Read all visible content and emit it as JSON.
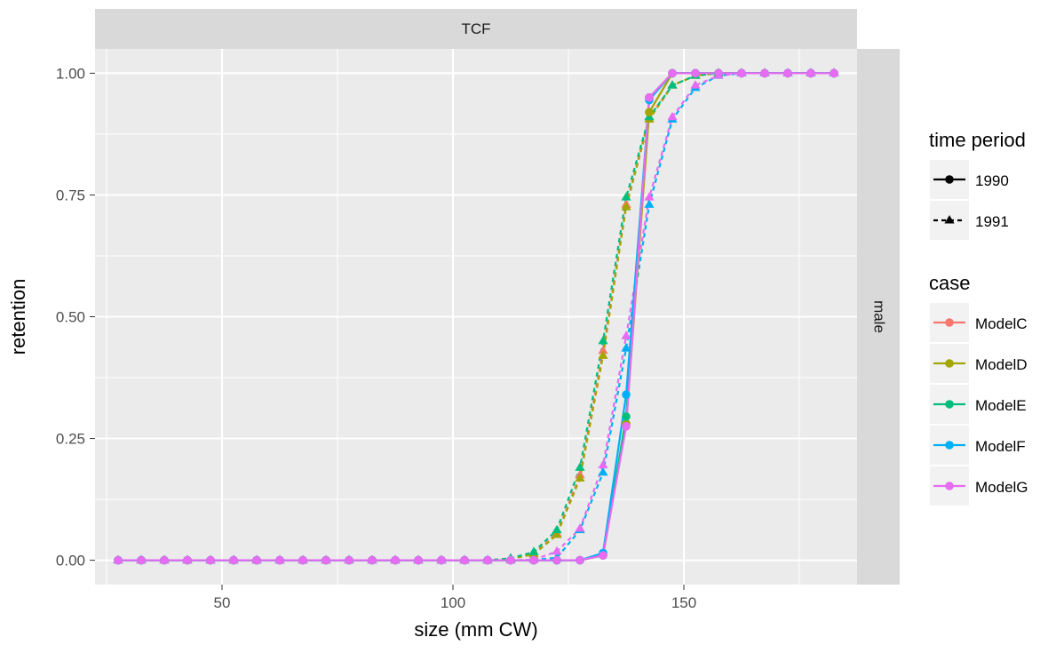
{
  "chart_data": {
    "type": "line",
    "facet_top": "TCF",
    "facet_right": "male",
    "xlabel": "size (mm CW)",
    "ylabel": "retention",
    "xlim": [
      22.5,
      187.5
    ],
    "ylim": [
      -0.05,
      1.05
    ],
    "x_ticks": [
      50,
      100,
      150
    ],
    "x_tick_labels": [
      "50",
      "100",
      "150"
    ],
    "y_ticks": [
      0,
      0.25,
      0.5,
      0.75,
      1
    ],
    "y_tick_labels": [
      "0.00",
      "0.25",
      "0.50",
      "0.75",
      "1.00"
    ],
    "grid": true,
    "legend_position": "right",
    "x": [
      27.5,
      32.5,
      37.5,
      42.5,
      47.5,
      52.5,
      57.5,
      62.5,
      67.5,
      72.5,
      77.5,
      82.5,
      87.5,
      92.5,
      97.5,
      102.5,
      107.5,
      112.5,
      117.5,
      122.5,
      127.5,
      132.5,
      137.5,
      142.5,
      147.5,
      152.5,
      157.5,
      162.5,
      167.5,
      172.5,
      177.5,
      182.5
    ],
    "legends": {
      "time_period": {
        "title": "time period",
        "entries": [
          {
            "label": "1990",
            "linetype": "solid",
            "shape": "circle"
          },
          {
            "label": "1991",
            "linetype": "dashed",
            "shape": "triangle"
          }
        ]
      },
      "case": {
        "title": "case",
        "entries": [
          {
            "label": "ModelC",
            "color": "#F8766D"
          },
          {
            "label": "ModelD",
            "color": "#A3A500"
          },
          {
            "label": "ModelE",
            "color": "#00BF7D"
          },
          {
            "label": "ModelF",
            "color": "#00B0F6"
          },
          {
            "label": "ModelG",
            "color": "#E76BF3"
          }
        ]
      }
    },
    "series": [
      {
        "case": "ModelC",
        "period": "1990",
        "values": [
          0,
          0,
          0,
          0,
          0,
          0,
          0,
          0,
          0,
          0,
          0,
          0,
          0,
          0,
          0,
          0,
          0,
          0,
          0,
          0,
          0,
          0.01,
          0.28,
          0.95,
          1,
          1,
          1,
          1,
          1,
          1,
          1,
          1
        ]
      },
      {
        "case": "ModelD",
        "period": "1990",
        "values": [
          0,
          0,
          0,
          0,
          0,
          0,
          0,
          0,
          0,
          0,
          0,
          0,
          0,
          0,
          0,
          0,
          0,
          0,
          0,
          0,
          0,
          0.01,
          0.28,
          0.92,
          1,
          1,
          1,
          1,
          1,
          1,
          1,
          1
        ]
      },
      {
        "case": "ModelE",
        "period": "1990",
        "values": [
          0,
          0,
          0,
          0,
          0,
          0,
          0,
          0,
          0,
          0,
          0,
          0,
          0,
          0,
          0,
          0,
          0,
          0,
          0,
          0,
          0,
          0.01,
          0.295,
          0.95,
          1,
          1,
          1,
          1,
          1,
          1,
          1,
          1
        ]
      },
      {
        "case": "ModelF",
        "period": "1990",
        "values": [
          0,
          0,
          0,
          0,
          0,
          0,
          0,
          0,
          0,
          0,
          0,
          0,
          0,
          0,
          0,
          0,
          0,
          0,
          0,
          0,
          0,
          0.015,
          0.34,
          0.945,
          1,
          1,
          1,
          1,
          1,
          1,
          1,
          1
        ]
      },
      {
        "case": "ModelG",
        "period": "1990",
        "values": [
          0,
          0,
          0,
          0,
          0,
          0,
          0,
          0,
          0,
          0,
          0,
          0,
          0,
          0,
          0,
          0,
          0,
          0,
          0,
          0,
          0,
          0.01,
          0.275,
          0.95,
          1,
          1,
          1,
          1,
          1,
          1,
          1,
          1
        ]
      },
      {
        "case": "ModelC",
        "period": "1991",
        "values": [
          0,
          0,
          0,
          0,
          0,
          0,
          0,
          0,
          0,
          0,
          0,
          0,
          0,
          0,
          0,
          0,
          0,
          0.003,
          0.013,
          0.055,
          0.175,
          0.43,
          0.73,
          0.91,
          0.975,
          0.995,
          1,
          1,
          1,
          1,
          1,
          1
        ]
      },
      {
        "case": "ModelD",
        "period": "1991",
        "values": [
          0,
          0,
          0,
          0,
          0,
          0,
          0,
          0,
          0,
          0,
          0,
          0,
          0,
          0,
          0,
          0,
          0,
          0.003,
          0.012,
          0.052,
          0.168,
          0.42,
          0.725,
          0.905,
          0.975,
          0.995,
          1,
          1,
          1,
          1,
          1,
          1
        ]
      },
      {
        "case": "ModelE",
        "period": "1991",
        "values": [
          0,
          0,
          0,
          0,
          0,
          0,
          0,
          0,
          0,
          0,
          0,
          0,
          0,
          0,
          0,
          0,
          0,
          0.004,
          0.017,
          0.062,
          0.19,
          0.45,
          0.745,
          0.91,
          0.975,
          0.995,
          1,
          1,
          1,
          1,
          1,
          1
        ]
      },
      {
        "case": "ModelF",
        "period": "1991",
        "values": [
          0,
          0,
          0,
          0,
          0,
          0,
          0,
          0,
          0,
          0,
          0,
          0,
          0,
          0,
          0,
          0,
          0,
          0,
          0.001,
          0.005,
          0.062,
          0.18,
          0.435,
          0.73,
          0.905,
          0.97,
          0.995,
          1,
          1,
          1,
          1,
          1
        ]
      },
      {
        "case": "ModelG",
        "period": "1991",
        "values": [
          0,
          0,
          0,
          0,
          0,
          0,
          0,
          0,
          0,
          0,
          0,
          0,
          0,
          0,
          0,
          0,
          0,
          0,
          0.001,
          0.018,
          0.065,
          0.195,
          0.46,
          0.745,
          0.91,
          0.975,
          0.995,
          1,
          1,
          1,
          1,
          1
        ]
      }
    ]
  }
}
